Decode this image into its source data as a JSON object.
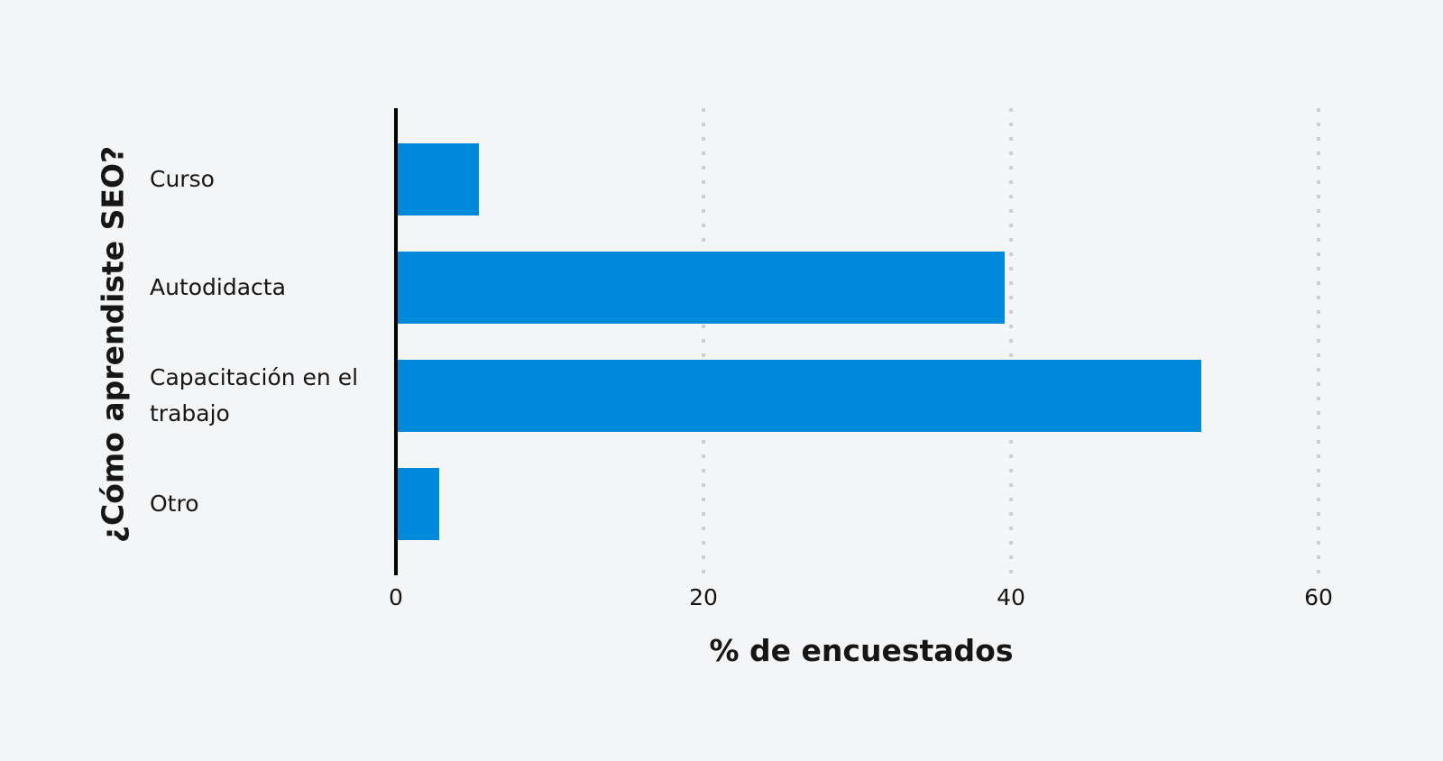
{
  "chart_data": {
    "type": "bar",
    "orientation": "horizontal",
    "title": "",
    "xlabel": "% de encuestados",
    "ylabel": "¿Cómo aprendiste SEO?",
    "categories": [
      "Curso",
      "Autodidacta",
      "Capacitación en el trabajo",
      "Otro"
    ],
    "values": [
      5.4,
      39.6,
      52.4,
      2.8
    ],
    "xlim": [
      0,
      60
    ],
    "xticks": [
      "0",
      "20",
      "40",
      "60"
    ],
    "grid": "vertical dotted",
    "legend": "none",
    "bar_color": "#0088db"
  },
  "labels": {
    "cat0": "Curso",
    "cat1": "Autodidacta",
    "cat2": "Capacitación en el trabajo",
    "cat3": "Otro",
    "tick0": "0",
    "tick20": "20",
    "tick40": "40",
    "tick60": "60",
    "x_title": "% de encuestados",
    "y_title": "¿Cómo aprendiste SEO?"
  }
}
